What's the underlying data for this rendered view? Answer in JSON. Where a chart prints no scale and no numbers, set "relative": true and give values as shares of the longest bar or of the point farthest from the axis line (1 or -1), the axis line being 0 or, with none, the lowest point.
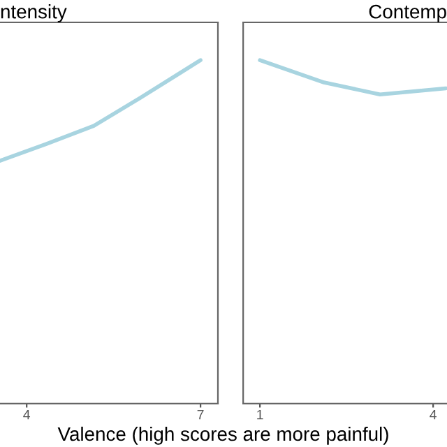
{
  "chart_data": [
    {
      "type": "line",
      "title": "ntensity",
      "relative": true,
      "tick_labels": "x",
      "grid": false,
      "legend": false,
      "xlim": [
        3.54,
        7.3
      ],
      "xticks": [
        4,
        7
      ],
      "series": [
        {
          "color": "#a8d4e0",
          "x": [
            3.54,
            4.34,
            5.16,
            5.96,
            7.0
          ],
          "values": [
            0.707,
            0.756,
            0.809,
            0.89,
            1.0
          ]
        }
      ]
    },
    {
      "type": "line",
      "title": "Contemp",
      "relative": true,
      "tick_labels": "x",
      "grid": false,
      "legend": false,
      "xlabel": "Valence (high scores are more painful)",
      "xlim": [
        0.71,
        4.24
      ],
      "xticks": [
        1,
        4
      ],
      "series": [
        {
          "color": "#a8d4e0",
          "x": [
            1.0,
            2.11,
            3.08,
            4.22
          ],
          "values": [
            1.0,
            0.935,
            0.9,
            0.918
          ]
        }
      ]
    }
  ]
}
